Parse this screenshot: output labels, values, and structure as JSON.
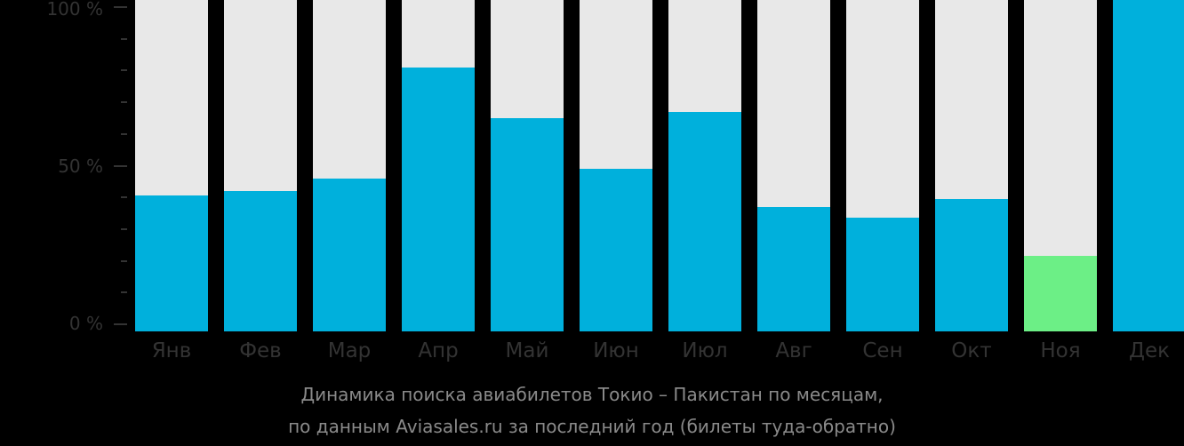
{
  "chart_data": {
    "type": "bar",
    "title": "Динамика поиска авиабилетов Токио – Пакистан по месяцам,",
    "subtitle": "по данным Aviasales.ru за последний год (билеты туда-обратно)",
    "xlabel": "",
    "ylabel": "",
    "ylim": [
      0,
      100
    ],
    "yticks": [
      "0 %",
      "50 %",
      "100 %"
    ],
    "categories": [
      "Янв",
      "Фев",
      "Мар",
      "Апр",
      "Май",
      "Июн",
      "Июл",
      "Авг",
      "Сен",
      "Окт",
      "Ноя",
      "Дек"
    ],
    "values": [
      40.5,
      42,
      46,
      81,
      65,
      49,
      67,
      37,
      33.5,
      39.5,
      21.5,
      100
    ],
    "highlight_min_index": 10,
    "colors": {
      "bar": "#00b0dc",
      "min": "#6cef86",
      "background_bar": "#e8e8e8"
    }
  }
}
